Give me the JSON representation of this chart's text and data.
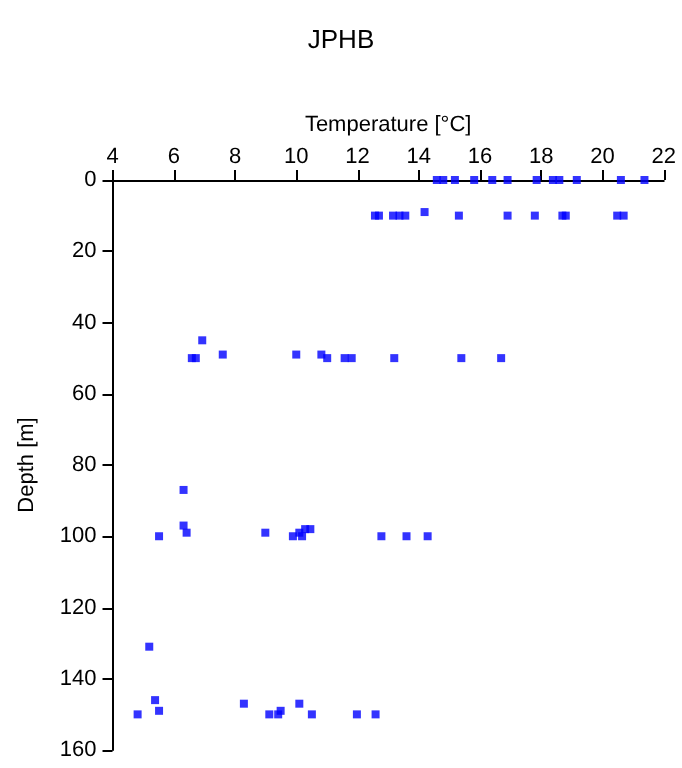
{
  "chart_data": {
    "type": "scatter",
    "title": "JPHB",
    "xlabel": "Temperature [°C]",
    "ylabel": "Depth [m]",
    "x": [
      14.59,
      14.8,
      15.18,
      15.81,
      16.4,
      16.9,
      17.85,
      18.38,
      18.59,
      19.16,
      20.6,
      21.37,
      12.57,
      12.7,
      13.16,
      13.37,
      13.56,
      14.19,
      15.31,
      16.9,
      17.79,
      18.69,
      18.8,
      20.48,
      20.69,
      6.93,
      6.59,
      6.72,
      7.6,
      10.0,
      10.82,
      11.01,
      11.58,
      11.81,
      13.2,
      15.39,
      16.69,
      6.32,
      6.32,
      6.42,
      5.52,
      8.99,
      9.89,
      10.1,
      10.19,
      10.29,
      10.46,
      12.78,
      13.6,
      14.29,
      5.2,
      5.39,
      5.52,
      4.82,
      8.29,
      9.12,
      9.41,
      9.49,
      10.1,
      10.51,
      11.98,
      12.59
    ],
    "values": [
      0,
      0,
      0,
      0,
      0,
      0,
      0,
      0,
      0,
      0,
      0,
      0,
      10,
      10,
      10,
      10,
      10,
      9,
      10,
      10,
      10,
      10,
      10,
      10,
      10,
      45,
      50,
      50,
      49,
      49,
      49,
      50,
      50,
      50,
      50,
      50,
      50,
      87,
      97,
      99,
      100,
      99,
      100,
      99,
      100,
      98,
      98,
      100,
      100,
      100,
      131,
      146,
      149,
      150,
      147,
      150,
      150,
      149,
      147,
      150,
      150,
      150
    ],
    "color": "#0000ff",
    "marker": "square",
    "xlim": [
      4,
      22
    ],
    "xticks": [
      4,
      6,
      8,
      10,
      12,
      14,
      16,
      18,
      20,
      22
    ],
    "ylim": [
      160,
      0
    ],
    "yticks": [
      0,
      20,
      40,
      60,
      80,
      100,
      120,
      140,
      160
    ]
  }
}
